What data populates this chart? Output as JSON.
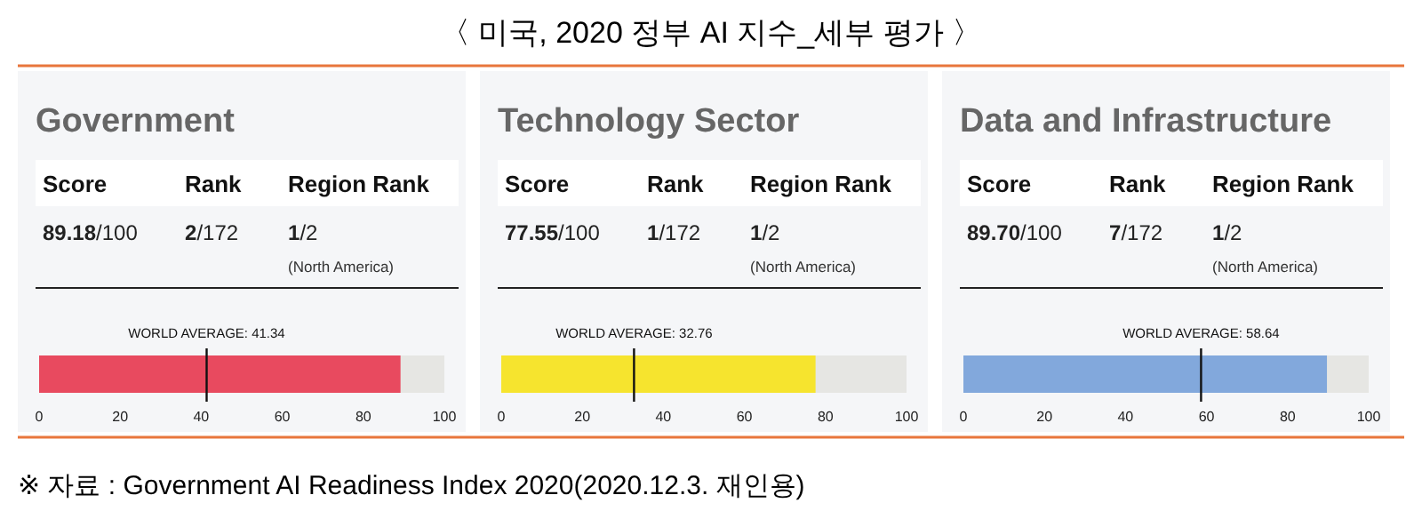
{
  "chart_data": [
    {
      "type": "other",
      "title": "〈 미국, 2020 정부 AI 지수_세부 평가 〉",
      "annotations": [
        "※ 자료 : Government AI Readiness Index 2020(2020.12.3. 재인용)"
      ]
    },
    {
      "type": "bar",
      "orientation": "horizontal",
      "title": "Government",
      "categories": [
        null
      ],
      "values": [
        89.18
      ],
      "color": "#e84a5f",
      "xlim": [
        0,
        100
      ],
      "xticks": [
        0,
        20,
        40,
        60,
        80,
        100
      ],
      "ref_lines": [
        {
          "axis": "x",
          "value": 41.34,
          "label": "WORLD AVERAGE: 41.34"
        }
      ],
      "annotations": [
        "Score",
        "Rank",
        "Region Rank",
        "89.18/100",
        "2/172",
        "1/2",
        "(North America)"
      ]
    },
    {
      "type": "bar",
      "orientation": "horizontal",
      "title": "Technology Sector",
      "categories": [
        null
      ],
      "values": [
        77.55
      ],
      "color": "#f6e42e",
      "xlim": [
        0,
        100
      ],
      "xticks": [
        0,
        20,
        40,
        60,
        80,
        100
      ],
      "ref_lines": [
        {
          "axis": "x",
          "value": 32.76,
          "label": "WORLD AVERAGE: 32.76"
        }
      ],
      "annotations": [
        "Score",
        "Rank",
        "Region Rank",
        "77.55/100",
        "1/172",
        "1/2",
        "(North America)"
      ]
    },
    {
      "type": "bar",
      "orientation": "horizontal",
      "title": "Data and Infrastructure",
      "categories": [
        null
      ],
      "values": [
        89.7
      ],
      "color": "#82a8dc",
      "xlim": [
        0,
        100
      ],
      "xticks": [
        0,
        20,
        40,
        60,
        80,
        100
      ],
      "ref_lines": [
        {
          "axis": "x",
          "value": 58.64,
          "label": "WORLD AVERAGE: 58.64"
        }
      ],
      "annotations": [
        "Score",
        "Rank",
        "Region Rank",
        "89.70/100",
        "7/172",
        "1/2",
        "(North America)"
      ]
    }
  ]
}
